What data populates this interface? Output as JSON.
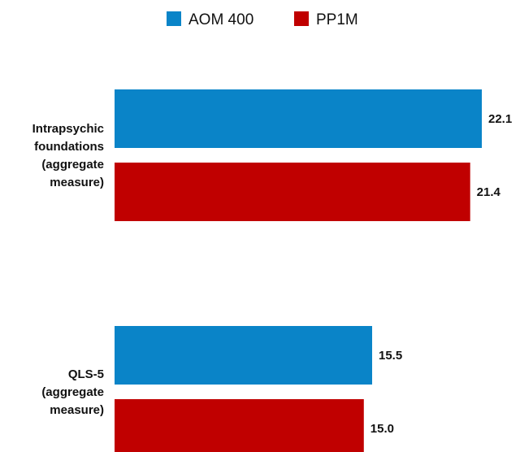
{
  "chart_data": {
    "type": "bar",
    "orientation": "horizontal",
    "categories": [
      [
        "Intrapsychic",
        "foundations",
        "(aggregate",
        "measure)"
      ],
      [
        "QLS-5",
        "(aggregate",
        "measure)"
      ]
    ],
    "series": [
      {
        "name": "AOM 400",
        "color": "#0a84c8",
        "values": [
          22.1,
          15.5
        ],
        "labels": [
          "22.1",
          "15.5"
        ]
      },
      {
        "name": "PP1M",
        "color": "#c00000",
        "values": [
          21.4,
          15.0
        ],
        "labels": [
          "21.4",
          "15.0"
        ]
      }
    ],
    "xlim": [
      0,
      22.1
    ],
    "legend": "top-center",
    "grid": false,
    "axes_visible": false
  }
}
